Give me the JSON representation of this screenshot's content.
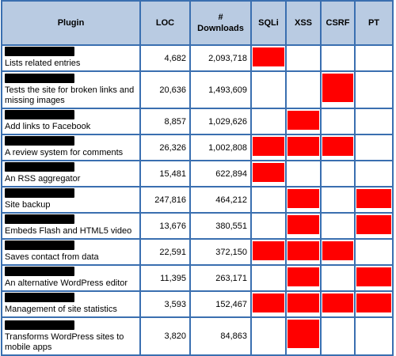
{
  "headers": {
    "plugin": "Plugin",
    "loc": "LOC",
    "downloads_line1": "#",
    "downloads_line2": "Downloads",
    "sqli": "SQLi",
    "xss": "XSS",
    "csrf": "CSRF",
    "pt": "PT"
  },
  "colors": {
    "header_bg": "#b9cbe2",
    "border": "#3a6fb0",
    "vulnerable": "#ff0000",
    "redaction": "#000000"
  },
  "rows": [
    {
      "desc": "Lists related entries",
      "loc": "4,682",
      "downloads": "2,093,718",
      "sqli": true,
      "xss": false,
      "csrf": false,
      "pt": false
    },
    {
      "desc": "Tests the site for broken links and missing images",
      "loc": "20,636",
      "downloads": "1,493,609",
      "sqli": false,
      "xss": false,
      "csrf": true,
      "pt": false
    },
    {
      "desc": "Add links to Facebook",
      "loc": "8,857",
      "downloads": "1,029,626",
      "sqli": false,
      "xss": true,
      "csrf": false,
      "pt": false
    },
    {
      "desc": "A review system for comments",
      "loc": "26,326",
      "downloads": "1,002,808",
      "sqli": true,
      "xss": true,
      "csrf": true,
      "pt": false
    },
    {
      "desc": "An RSS aggregator",
      "loc": "15,481",
      "downloads": "622,894",
      "sqli": true,
      "xss": false,
      "csrf": false,
      "pt": false
    },
    {
      "desc": "Site backup",
      "loc": "247,816",
      "downloads": "464,212",
      "sqli": false,
      "xss": true,
      "csrf": false,
      "pt": true
    },
    {
      "desc": "Embeds Flash and HTML5 video",
      "loc": "13,676",
      "downloads": "380,551",
      "sqli": false,
      "xss": true,
      "csrf": false,
      "pt": true
    },
    {
      "desc": "Saves contact from data",
      "loc": "22,591",
      "downloads": "372,150",
      "sqli": true,
      "xss": true,
      "csrf": true,
      "pt": false
    },
    {
      "desc": "An alternative WordPress editor",
      "loc": "11,395",
      "downloads": "263,171",
      "sqli": false,
      "xss": true,
      "csrf": false,
      "pt": true
    },
    {
      "desc": "Management of site statistics",
      "loc": "3,593",
      "downloads": "152,467",
      "sqli": true,
      "xss": true,
      "csrf": true,
      "pt": true
    },
    {
      "desc": "Transforms WordPress sites to mobile apps",
      "loc": "3,820",
      "downloads": "84,863",
      "sqli": false,
      "xss": true,
      "csrf": false,
      "pt": false
    }
  ]
}
